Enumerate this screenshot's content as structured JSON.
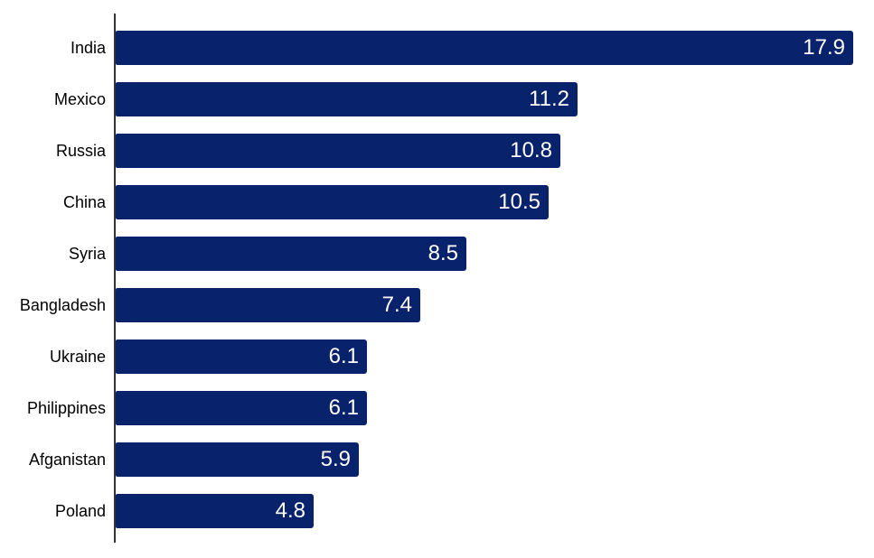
{
  "chart_data": {
    "type": "bar",
    "orientation": "horizontal",
    "title": "",
    "xlabel": "",
    "ylabel": "",
    "categories": [
      "India",
      "Mexico",
      "Russia",
      "China",
      "Syria",
      "Bangladesh",
      "Ukraine",
      "Philippines",
      "Afganistan",
      "Poland"
    ],
    "values": [
      17.9,
      11.2,
      10.8,
      10.5,
      8.5,
      7.4,
      6.1,
      6.1,
      5.9,
      4.8
    ],
    "value_labels": [
      "17.9",
      "11.2",
      "10.8",
      "10.5",
      "8.5",
      "7.4",
      "6.1",
      "6.1",
      "5.9",
      "4.8"
    ],
    "xlim": [
      0,
      18
    ],
    "grid": false,
    "legend": false,
    "data_labels_position": "inside-end",
    "colors": {
      "bar": "#08236B",
      "category_label": "#000000",
      "value_label": "#FFFFFF",
      "axis_line": "#333333",
      "background": "#FFFFFF"
    }
  }
}
